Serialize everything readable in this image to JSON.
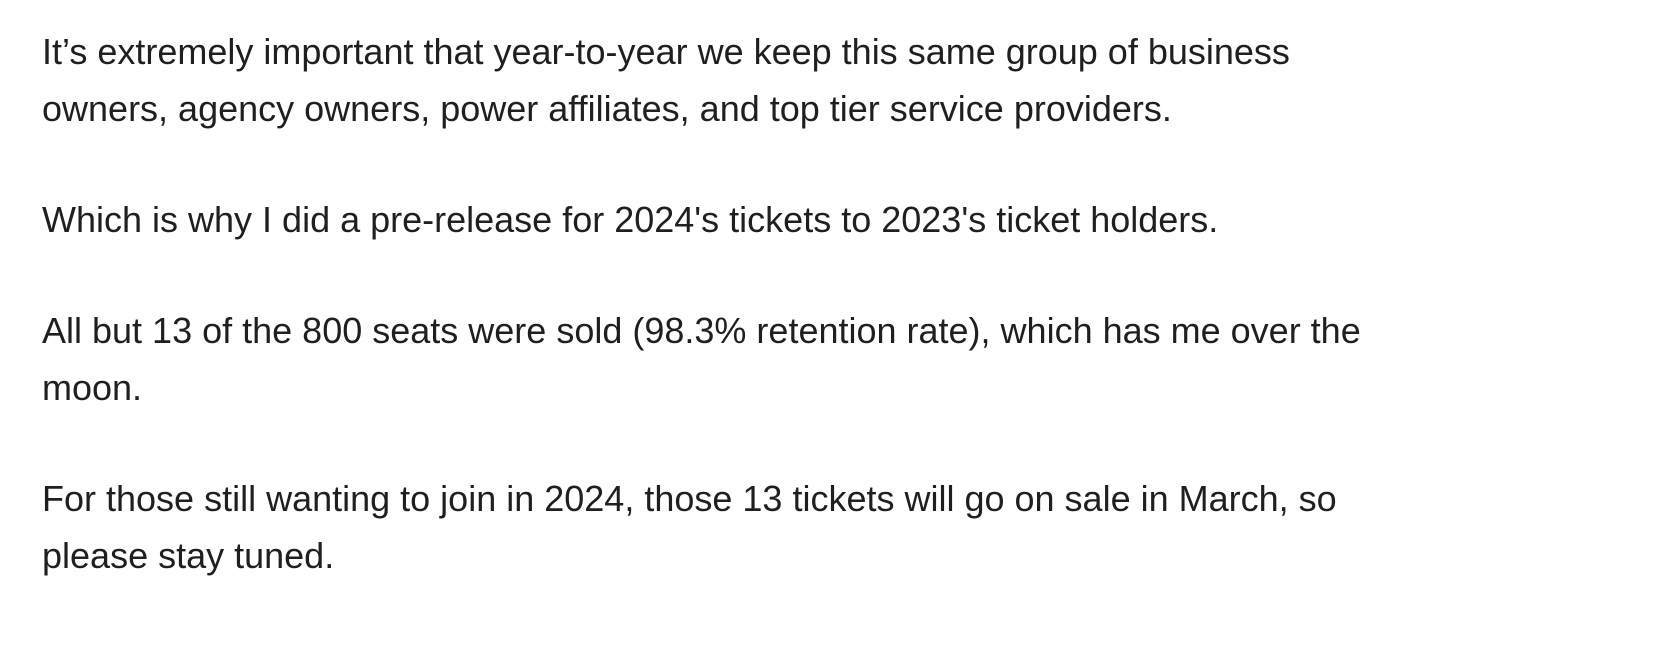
{
  "paragraphs": [
    {
      "lines": [
        "It’s extremely important that year-to-year we keep this same group of business",
        "owners, agency owners, power affiliates, and top tier service providers."
      ]
    },
    {
      "lines": [
        "Which is why I did a pre-release for 2024's tickets to 2023's ticket holders."
      ]
    },
    {
      "lines": [
        "All but 13 of the 800 seats were sold (98.3% retention rate), which has me over the",
        "moon."
      ]
    },
    {
      "lines": [
        "For those still wanting to join in 2024, those 13 tickets will go on sale in March, so",
        "please stay tuned."
      ]
    }
  ]
}
